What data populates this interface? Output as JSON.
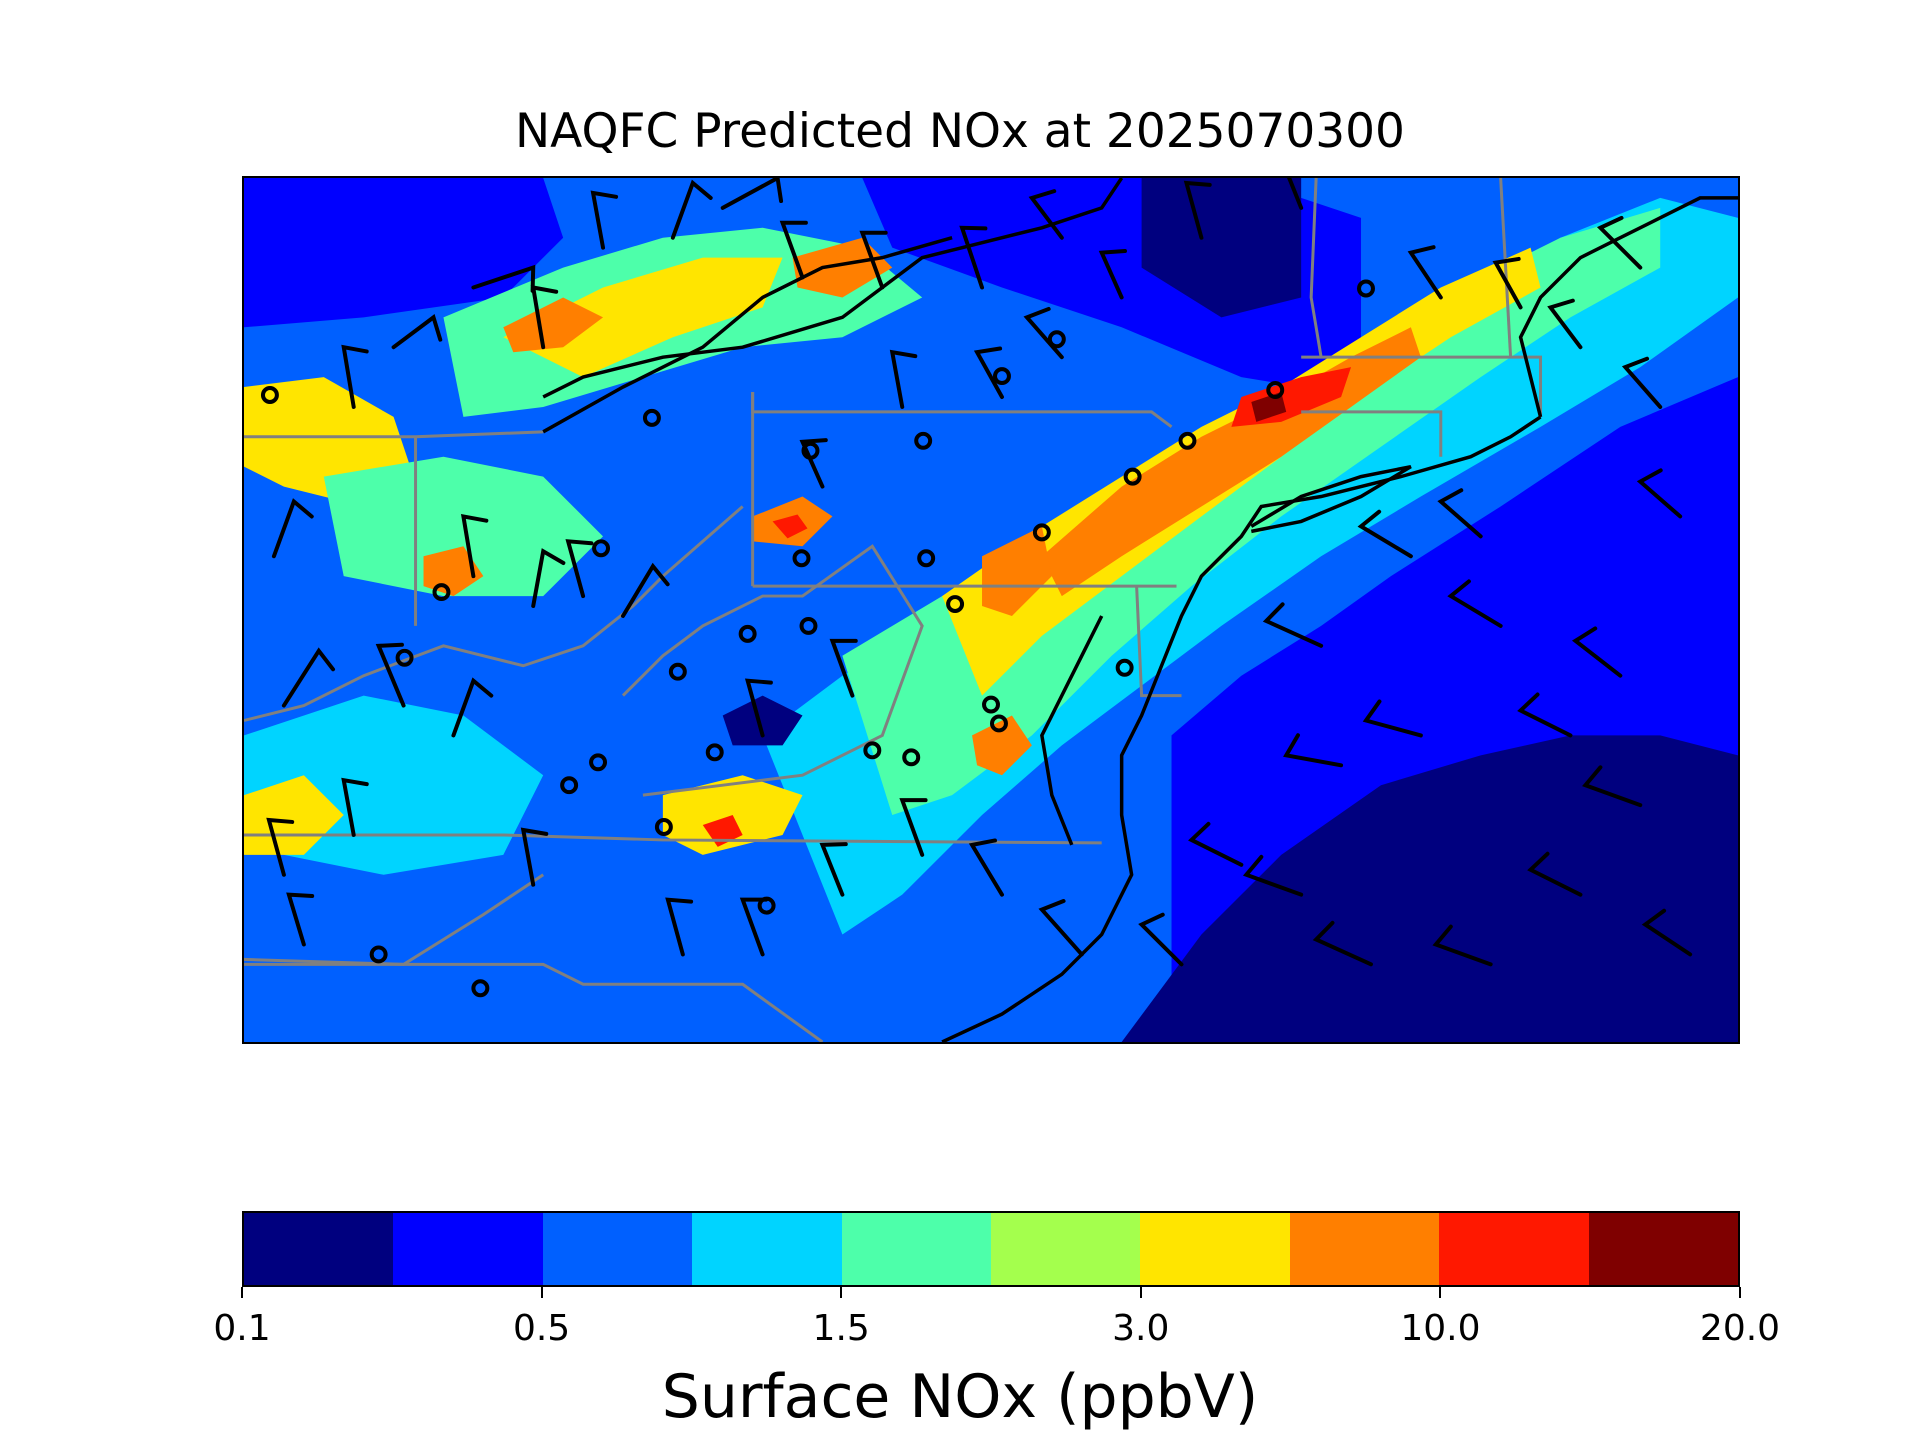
{
  "figure": {
    "title": "NAQFC Predicted NOx at 2025070300"
  },
  "map": {
    "field": "Surface NOx",
    "units": "ppbV",
    "ocean_level_bins": [
      0,
      1
    ],
    "overlay_layers": [
      "state-boundaries",
      "coastlines",
      "wind-barbs",
      "station-markers"
    ],
    "colors": {
      "state_boundary": "#808080",
      "coastline": "#000000",
      "wind_barb": "#000000",
      "station_marker": "#000000"
    }
  },
  "colorbar": {
    "label": "Surface NOx (ppbV)",
    "bin_colors": [
      "#00007f",
      "#0000ff",
      "#0060ff",
      "#00d4ff",
      "#4dffaa",
      "#a4ff4d",
      "#ffe500",
      "#ff7f00",
      "#ff1800",
      "#7f0000"
    ],
    "tick_labels": [
      "0.1",
      "0.5",
      "1.5",
      "3.0",
      "10.0",
      "20.0"
    ],
    "tick_bin_index": [
      0,
      2,
      4,
      6,
      8,
      10
    ]
  }
}
